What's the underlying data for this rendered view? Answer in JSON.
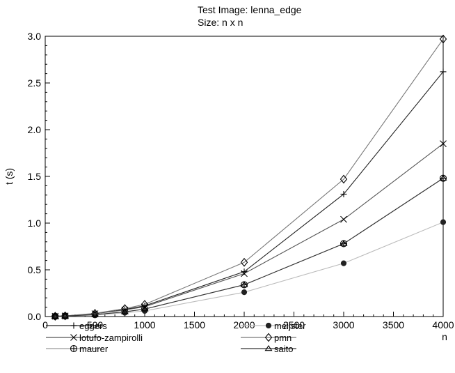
{
  "chart_data": {
    "type": "line",
    "title": "Test Image: lenna_edge",
    "subtitle": "Size: n x n",
    "xlabel": "n",
    "ylabel": "t (s)",
    "xlim": [
      0,
      4000
    ],
    "ylim": [
      0,
      3.0
    ],
    "x_ticks": [
      "0",
      "500",
      "1000",
      "1500",
      "2000",
      "2500",
      "3000",
      "3500",
      "4000"
    ],
    "y_ticks": [
      "0.0",
      "0.5",
      "1.0",
      "1.5",
      "2.0",
      "2.5",
      "3.0"
    ],
    "grid": false,
    "legend_position": "bottom",
    "series": [
      {
        "name": "eggers",
        "marker": "plus",
        "color": "#222222",
        "x": [
          100,
          200,
          500,
          800,
          1000,
          2000,
          3000,
          4000
        ],
        "y": [
          0.003,
          0.006,
          0.03,
          0.075,
          0.115,
          0.48,
          1.31,
          2.62
        ]
      },
      {
        "name": "lotufo-zampirolli",
        "marker": "x",
        "color": "#555555",
        "x": [
          100,
          200,
          500,
          800,
          1000,
          2000,
          3000,
          4000
        ],
        "y": [
          0.003,
          0.006,
          0.03,
          0.07,
          0.105,
          0.46,
          1.04,
          1.85
        ]
      },
      {
        "name": "maurer",
        "marker": "circle-plus",
        "color": "#999999",
        "x": [
          100,
          200,
          500,
          800,
          1000,
          2000,
          3000,
          4000
        ],
        "y": [
          0.002,
          0.005,
          0.02,
          0.05,
          0.08,
          0.34,
          0.78,
          1.48
        ]
      },
      {
        "name": "meijster",
        "marker": "filled-diamond",
        "color": "#bbbbbb",
        "x": [
          100,
          200,
          500,
          800,
          1000,
          2000,
          3000,
          4000
        ],
        "y": [
          0.002,
          0.004,
          0.016,
          0.04,
          0.06,
          0.26,
          0.57,
          1.01
        ]
      },
      {
        "name": "pmn",
        "marker": "diamond",
        "color": "#777777",
        "x": [
          100,
          200,
          500,
          800,
          1000,
          2000,
          3000,
          4000
        ],
        "y": [
          0.003,
          0.007,
          0.034,
          0.085,
          0.13,
          0.58,
          1.47,
          2.97
        ]
      },
      {
        "name": "saito",
        "marker": "triangle-down",
        "color": "#333333",
        "x": [
          100,
          200,
          500,
          800,
          1000,
          2000,
          3000,
          4000
        ],
        "y": [
          0.002,
          0.005,
          0.02,
          0.05,
          0.08,
          0.34,
          0.78,
          1.48
        ]
      }
    ]
  }
}
